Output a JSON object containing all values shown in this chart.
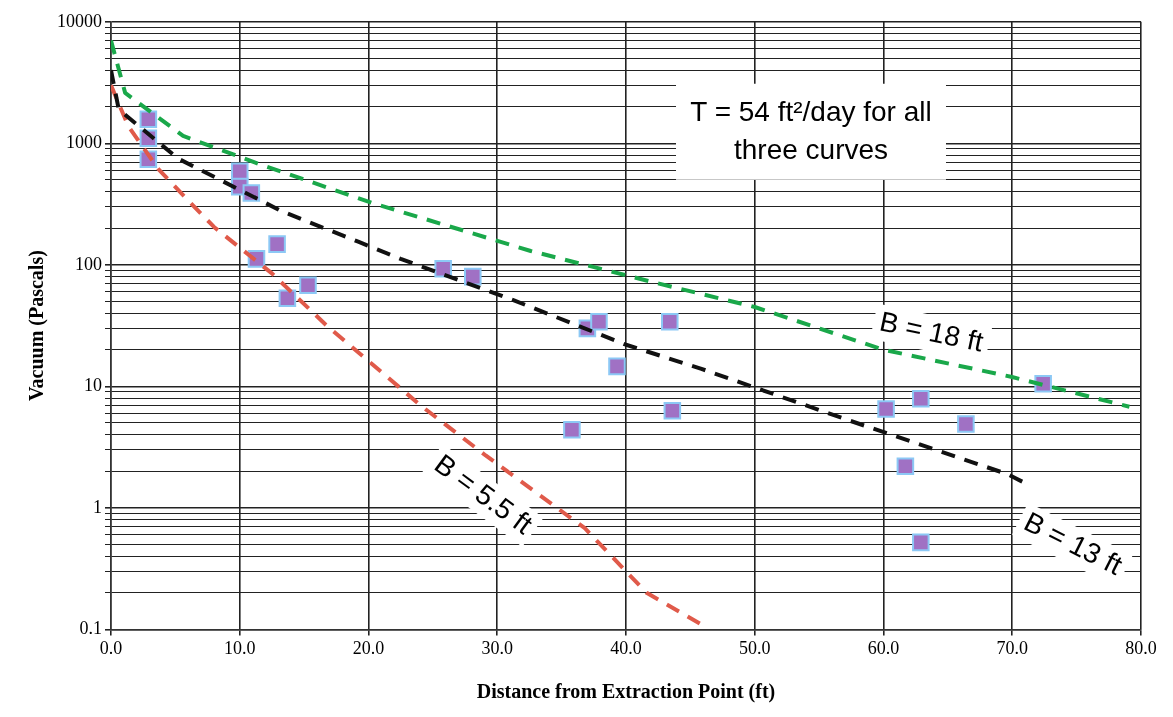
{
  "chart_data": {
    "type": "scatter",
    "xlabel": "Distance from Extraction Point (ft)",
    "ylabel": "Vacuum (Pascals)",
    "log": "y",
    "grid": true,
    "legend": false,
    "xlim": [
      0,
      80
    ],
    "xticks": [
      {
        "value": 0,
        "label": "0.0"
      },
      {
        "value": 10,
        "label": "10.0"
      },
      {
        "value": 20,
        "label": "20.0"
      },
      {
        "value": 30,
        "label": "30.0"
      },
      {
        "value": 40,
        "label": "40.0"
      },
      {
        "value": 50,
        "label": "50.0"
      },
      {
        "value": 60,
        "label": "60.0"
      },
      {
        "value": 70,
        "label": "70.0"
      },
      {
        "value": 80,
        "label": "80.0"
      }
    ],
    "ylim": [
      0.1,
      10000
    ],
    "yticks": [
      0.1,
      {
        "value": 0.2,
        "label": null
      },
      {
        "value": 0.3,
        "label": null
      },
      {
        "value": 0.4,
        "label": null
      },
      {
        "value": 0.5,
        "label": null
      },
      {
        "value": 0.6,
        "label": null
      },
      {
        "value": 0.7,
        "label": null
      },
      {
        "value": 0.8,
        "label": null
      },
      {
        "value": 0.9,
        "label": null
      },
      1,
      {
        "value": 2,
        "label": null
      },
      {
        "value": 3,
        "label": null
      },
      {
        "value": 4,
        "label": null
      },
      {
        "value": 5,
        "label": null
      },
      {
        "value": 6,
        "label": null
      },
      {
        "value": 7,
        "label": null
      },
      {
        "value": 8,
        "label": null
      },
      {
        "value": 9,
        "label": null
      },
      10,
      {
        "value": 20,
        "label": null
      },
      {
        "value": 30,
        "label": null
      },
      {
        "value": 40,
        "label": null
      },
      {
        "value": 50,
        "label": null
      },
      {
        "value": 60,
        "label": null
      },
      {
        "value": 70,
        "label": null
      },
      {
        "value": 80,
        "label": null
      },
      {
        "value": 90,
        "label": null
      },
      100,
      {
        "value": 200,
        "label": null
      },
      {
        "value": 300,
        "label": null
      },
      {
        "value": 400,
        "label": null
      },
      {
        "value": 500,
        "label": null
      },
      {
        "value": 600,
        "label": null
      },
      {
        "value": 700,
        "label": null
      },
      {
        "value": 800,
        "label": null
      },
      {
        "value": 900,
        "label": null
      },
      1000,
      {
        "value": 2000,
        "label": null
      },
      {
        "value": 3000,
        "label": null
      },
      {
        "value": 4000,
        "label": null
      },
      {
        "value": 5000,
        "label": null
      },
      {
        "value": 6000,
        "label": null
      },
      {
        "value": 7000,
        "label": null
      },
      {
        "value": 8000,
        "label": null
      },
      {
        "value": 9000,
        "label": null
      },
      10000
    ],
    "series": [
      {
        "type": "line",
        "name": "B = 18 ft",
        "color": "#1aa84a",
        "line_style": "dashed",
        "marker": "none",
        "x": [
          0,
          1.1,
          5.6,
          11.6,
          20.4,
          32.6,
          42.1,
          50,
          60,
          69.9,
          79.1
        ],
        "values": [
          7000,
          2600,
          1150,
          670,
          320,
          130,
          72,
          45,
          20,
          12,
          6.8
        ]
      },
      {
        "type": "line",
        "name": "B = 13 ft",
        "color": "#111111",
        "line_style": "dashed",
        "marker": "none",
        "x": [
          0,
          0.6,
          5.2,
          13.3,
          19.2,
          22.5,
          31.3,
          40,
          45.8,
          57.2,
          69.6,
          71
        ],
        "values": [
          4000,
          1900,
          750,
          275,
          155,
          112,
          51,
          22,
          14,
          5.3,
          1.9,
          1.6
        ]
      },
      {
        "type": "line",
        "name": "B = 5.5 ft",
        "color": "#e05a4a",
        "line_style": "dashed",
        "marker": "none",
        "x": [
          0,
          1.35,
          3.7,
          5.7,
          8,
          12.5,
          16.7,
          24.1,
          29.1,
          36.8,
          41.6,
          46.1
        ],
        "values": [
          3000,
          1380,
          610,
          365,
          205,
          85,
          32,
          6.9,
          2.7,
          0.68,
          0.2,
          0.106
        ]
      },
      {
        "color": "#a071c4",
        "marker": "square",
        "x": [
          2.9,
          2.9,
          2.9,
          10,
          10,
          10.9,
          11.3,
          12.9,
          13.7,
          15.3,
          25.8,
          28.1,
          37,
          37.9,
          43.4,
          39.3,
          35.8,
          43.6,
          60.2,
          62.9,
          66.4,
          72.4,
          61.7,
          62.9
        ],
        "values": [
          1580,
          1100,
          740,
          590,
          440,
          390,
          112,
          148,
          53,
          68,
          93,
          80,
          30,
          34,
          34,
          14.6,
          4.4,
          6.3,
          6.5,
          7.9,
          4.9,
          10.5,
          2.2,
          0.52
        ]
      }
    ],
    "annotations": [
      "T = 54 ft²/day for all three curves"
    ]
  }
}
